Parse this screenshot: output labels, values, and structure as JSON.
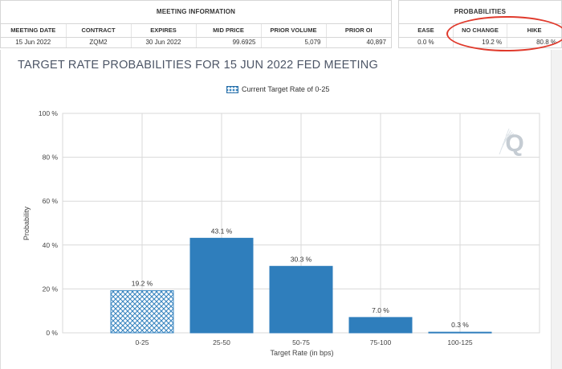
{
  "meeting_info": {
    "title": "MEETING INFORMATION",
    "columns": [
      "MEETING DATE",
      "CONTRACT",
      "EXPIRES",
      "MID PRICE",
      "PRIOR VOLUME",
      "PRIOR OI"
    ],
    "row": [
      "15 Jun 2022",
      "ZQM2",
      "30 Jun 2022",
      "99.6925",
      "5,079",
      "40,897"
    ]
  },
  "probabilities": {
    "title": "PROBABILITIES",
    "columns": [
      "EASE",
      "NO CHANGE",
      "HIKE"
    ],
    "row": [
      "0.0 %",
      "19.2 %",
      "80.8 %"
    ]
  },
  "colors": {
    "bar": "#2f7ebc",
    "highlight": "#e03a2c",
    "grid": "#d9d9d9",
    "title": "#4c5566"
  },
  "chart_data": {
    "type": "bar",
    "title": "TARGET RATE PROBABILITIES FOR 15 JUN 2022 FED MEETING",
    "legend": "Current Target Rate of 0-25",
    "legend_position": "top-center",
    "xlabel": "Target Rate (in bps)",
    "ylabel": "Probability",
    "categories": [
      "0-25",
      "25-50",
      "50-75",
      "75-100",
      "100-125"
    ],
    "values": [
      19.2,
      43.1,
      30.3,
      7.0,
      0.3
    ],
    "value_labels": [
      "19.2 %",
      "43.1 %",
      "30.3 %",
      "7.0 %",
      "0.3 %"
    ],
    "current_category": "0-25",
    "y_ticks": [
      "0 %",
      "20 %",
      "40 %",
      "60 %",
      "80 %",
      "100 %"
    ],
    "ylim": [
      0,
      100
    ],
    "grid": true,
    "watermark": "Q"
  }
}
